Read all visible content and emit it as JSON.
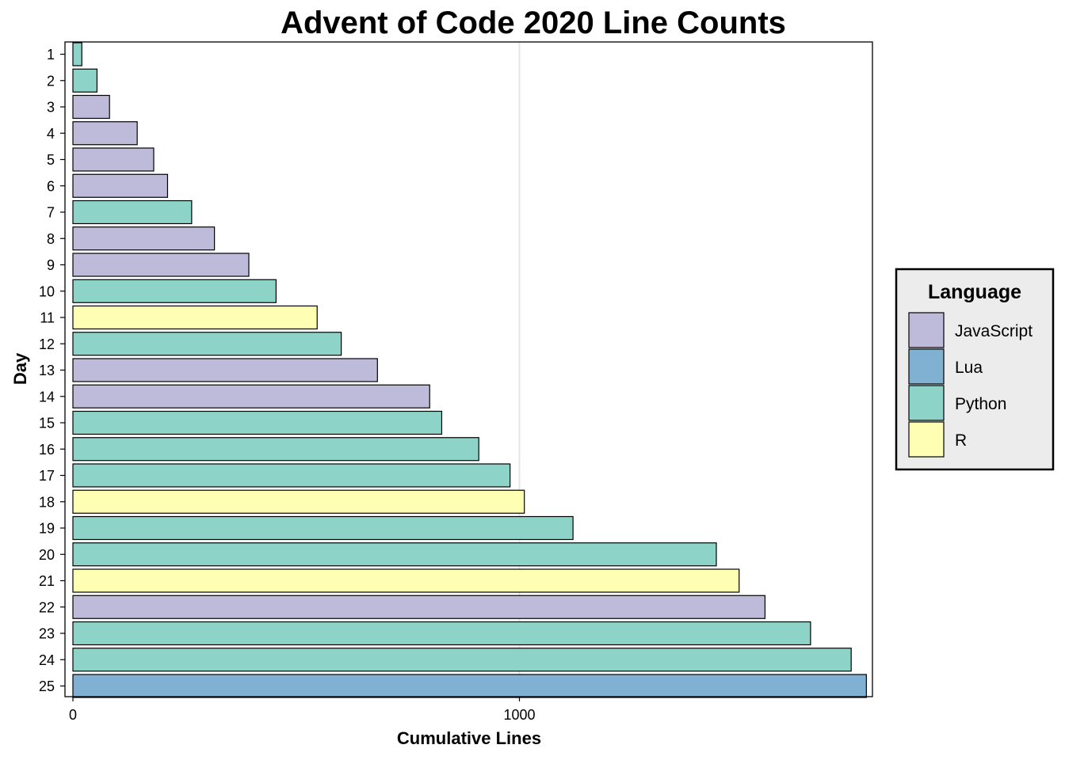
{
  "chart_data": {
    "type": "bar",
    "orientation": "horizontal",
    "title": "Advent of Code 2020 Line Counts",
    "xlabel": "Cumulative Lines",
    "ylabel": "Day",
    "xlim": [
      0,
      1790
    ],
    "xticks": [
      0,
      1000
    ],
    "grid": "x major gridlines",
    "categories": [
      "1",
      "2",
      "3",
      "4",
      "5",
      "6",
      "7",
      "8",
      "9",
      "10",
      "11",
      "12",
      "13",
      "14",
      "15",
      "16",
      "17",
      "18",
      "19",
      "20",
      "21",
      "22",
      "23",
      "24",
      "25"
    ],
    "values": [
      20,
      54,
      82,
      144,
      181,
      212,
      266,
      317,
      394,
      455,
      547,
      601,
      682,
      799,
      826,
      909,
      979,
      1011,
      1120,
      1441,
      1492,
      1550,
      1652,
      1743,
      1777
    ],
    "language": [
      "Python",
      "Python",
      "JavaScript",
      "JavaScript",
      "JavaScript",
      "JavaScript",
      "Python",
      "JavaScript",
      "JavaScript",
      "Python",
      "R",
      "Python",
      "JavaScript",
      "JavaScript",
      "Python",
      "Python",
      "Python",
      "R",
      "Python",
      "Python",
      "R",
      "JavaScript",
      "Python",
      "Python",
      "Lua"
    ],
    "legend": {
      "title": "Language",
      "position": "right",
      "entries": [
        {
          "name": "JavaScript",
          "color": "#BEBADA"
        },
        {
          "name": "Lua",
          "color": "#80B1D3"
        },
        {
          "name": "Python",
          "color": "#8DD3C7"
        },
        {
          "name": "R",
          "color": "#FFFFB3"
        }
      ]
    }
  }
}
